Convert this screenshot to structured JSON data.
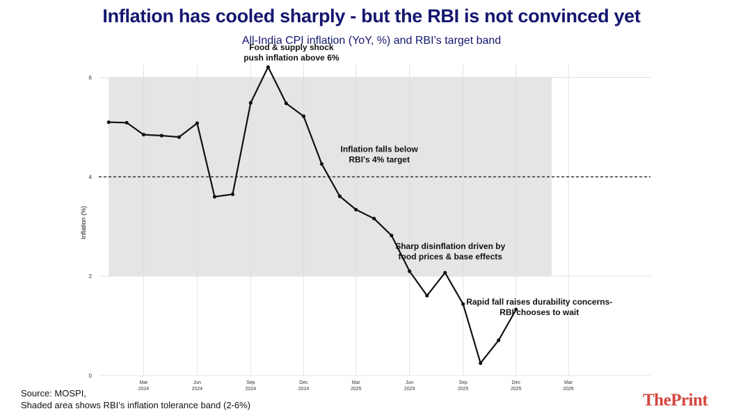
{
  "header": {
    "title": "Inflation has cooled sharply - but the RBI is not convinced yet",
    "subtitle": "All-India CPI inflation (YoY, %) and RBI’s target band"
  },
  "footer": {
    "source_line1": "Source: MOSPI,",
    "source_line2": "Shaded area shows RBI’s inflation tolerance band (2-6%)",
    "brand_part1": "The",
    "brand_part2": "Print",
    "brand_color": "#d4463e"
  },
  "chart_data": {
    "type": "line",
    "title": "Inflation has cooled sharply - but the RBI is not convinced yet",
    "subtitle": "All-India CPI inflation (YoY, %) and RBI’s target band",
    "ylabel": "Inflation (%)",
    "xlabel": "",
    "ylim": [
      0,
      6.3
    ],
    "xlim": [
      "2023-12-15",
      "2026-07-20"
    ],
    "yticks": [
      0,
      2,
      4,
      6
    ],
    "xticks": [
      {
        "date": "2024-03-01",
        "label": [
          "Mar",
          "2024"
        ]
      },
      {
        "date": "2024-06-01",
        "label": [
          "Jun",
          "2024"
        ]
      },
      {
        "date": "2024-09-01",
        "label": [
          "Sep",
          "2024"
        ]
      },
      {
        "date": "2024-12-01",
        "label": [
          "Dec",
          "2024"
        ]
      },
      {
        "date": "2025-03-01",
        "label": [
          "Mar",
          "2025"
        ]
      },
      {
        "date": "2025-06-01",
        "label": [
          "Jun",
          "2025"
        ]
      },
      {
        "date": "2025-09-01",
        "label": [
          "Sep",
          "2025"
        ]
      },
      {
        "date": "2025-12-01",
        "label": [
          "Dec",
          "2025"
        ]
      },
      {
        "date": "2026-03-01",
        "label": [
          "Mar",
          "2026"
        ]
      }
    ],
    "grid": true,
    "band": {
      "from": 2,
      "to": 6,
      "x_start": "2024-01-01",
      "x_end": "2026-01-31",
      "color": "#e5e5e5"
    },
    "target_line": {
      "value": 4,
      "style": "dashed"
    },
    "series": [
      {
        "color": "#111111",
        "points": [
          {
            "x": "2024-01-01",
            "y": 5.1
          },
          {
            "x": "2024-02-01",
            "y": 5.09
          },
          {
            "x": "2024-03-01",
            "y": 4.85
          },
          {
            "x": "2024-04-01",
            "y": 4.83
          },
          {
            "x": "2024-05-01",
            "y": 4.8
          },
          {
            "x": "2024-06-01",
            "y": 5.08
          },
          {
            "x": "2024-07-01",
            "y": 3.6
          },
          {
            "x": "2024-08-01",
            "y": 3.65
          },
          {
            "x": "2024-09-01",
            "y": 5.49
          },
          {
            "x": "2024-10-01",
            "y": 6.21
          },
          {
            "x": "2024-11-01",
            "y": 5.48
          },
          {
            "x": "2024-12-01",
            "y": 5.22
          },
          {
            "x": "2025-01-01",
            "y": 4.26
          },
          {
            "x": "2025-02-01",
            "y": 3.61
          },
          {
            "x": "2025-03-01",
            "y": 3.34
          },
          {
            "x": "2025-04-01",
            "y": 3.16
          },
          {
            "x": "2025-05-01",
            "y": 2.82
          },
          {
            "x": "2025-06-01",
            "y": 2.1
          },
          {
            "x": "2025-07-01",
            "y": 1.61
          },
          {
            "x": "2025-08-01",
            "y": 2.07
          },
          {
            "x": "2025-09-01",
            "y": 1.44
          },
          {
            "x": "2025-10-01",
            "y": 0.25
          },
          {
            "x": "2025-11-01",
            "y": 0.71
          },
          {
            "x": "2025-12-01",
            "y": 1.33
          }
        ]
      }
    ],
    "annotations": [
      {
        "lines": [
          "Food & supply shock",
          "push inflation above 6%"
        ],
        "x": "2024-11-10",
        "y": 6.55
      },
      {
        "lines": [
          "Inflation falls below",
          "RBI’s 4% target"
        ],
        "x": "2025-04-10",
        "y": 4.5
      },
      {
        "lines": [
          "Sharp disinflation driven by",
          "food prices & base effects"
        ],
        "x": "2025-08-10",
        "y": 2.55
      },
      {
        "lines": [
          "Rapid fall raises durability concerns-",
          "RBI chooses to wait"
        ],
        "x": "2026-01-10",
        "y": 1.43
      }
    ]
  }
}
